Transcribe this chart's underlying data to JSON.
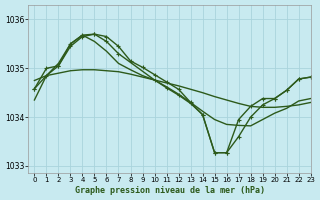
{
  "title": "Graphe pression niveau de la mer (hPa)",
  "background_color": "#c8eaf0",
  "plot_bg_color": "#c8eaf0",
  "grid_color": "#aad4dc",
  "line_color": "#2d5a1b",
  "xlim": [
    -0.5,
    23
  ],
  "ylim": [
    1032.85,
    1036.3
  ],
  "yticks": [
    1033,
    1034,
    1035,
    1036
  ],
  "xticks": [
    0,
    1,
    2,
    3,
    4,
    5,
    6,
    7,
    8,
    9,
    10,
    11,
    12,
    13,
    14,
    15,
    16,
    17,
    18,
    19,
    20,
    21,
    22,
    23
  ],
  "series": [
    {
      "x": [
        0,
        1,
        2,
        3,
        4,
        5,
        6,
        7,
        8,
        9,
        10,
        11,
        12,
        13,
        14,
        15,
        16,
        17,
        18,
        19,
        20,
        21,
        22,
        23
      ],
      "y": [
        1034.75,
        1034.85,
        1034.9,
        1034.95,
        1034.97,
        1034.97,
        1034.95,
        1034.93,
        1034.88,
        1034.82,
        1034.76,
        1034.7,
        1034.64,
        1034.57,
        1034.5,
        1034.42,
        1034.35,
        1034.28,
        1034.22,
        1034.2,
        1034.2,
        1034.22,
        1034.25,
        1034.3
      ],
      "marker": null,
      "linewidth": 1.0
    },
    {
      "x": [
        0,
        1,
        2,
        3,
        4,
        5,
        6,
        7,
        8,
        9,
        10,
        11,
        12,
        13,
        14,
        15,
        16,
        17,
        18,
        19,
        20,
        21,
        22,
        23
      ],
      "y": [
        1034.58,
        1034.85,
        1035.05,
        1035.45,
        1035.65,
        1035.7,
        1035.65,
        1035.45,
        1035.15,
        1035.02,
        1034.87,
        1034.72,
        1034.57,
        1034.3,
        1034.05,
        1033.27,
        1033.27,
        1033.6,
        1034.0,
        1034.25,
        1034.38,
        1034.55,
        1034.78,
        1034.82
      ],
      "marker": "+",
      "linewidth": 1.0
    },
    {
      "x": [
        0,
        1,
        2,
        3,
        4,
        5,
        6,
        7,
        10,
        11,
        12,
        13,
        14,
        15,
        16,
        17,
        18,
        19,
        20,
        21,
        22,
        23
      ],
      "y": [
        1034.58,
        1035.0,
        1035.05,
        1035.5,
        1035.68,
        1035.7,
        1035.55,
        1035.3,
        1034.76,
        1034.6,
        1034.45,
        1034.28,
        1034.05,
        1033.27,
        1033.27,
        1033.95,
        1034.22,
        1034.38,
        1034.38,
        1034.55,
        1034.78,
        1034.82
      ],
      "marker": "+",
      "linewidth": 1.0
    },
    {
      "x": [
        0,
        1,
        2,
        3,
        4,
        5,
        6,
        7,
        8,
        9,
        10,
        11,
        12,
        13,
        14,
        15,
        16,
        17,
        18,
        19,
        20,
        21,
        22,
        23
      ],
      "y": [
        1034.35,
        1034.85,
        1035.1,
        1035.5,
        1035.68,
        1035.55,
        1035.35,
        1035.1,
        1034.97,
        1034.85,
        1034.76,
        1034.62,
        1034.47,
        1034.3,
        1034.12,
        1033.95,
        1033.85,
        1033.83,
        1033.82,
        1033.95,
        1034.08,
        1034.18,
        1034.33,
        1034.38
      ],
      "marker": null,
      "linewidth": 1.0
    }
  ]
}
